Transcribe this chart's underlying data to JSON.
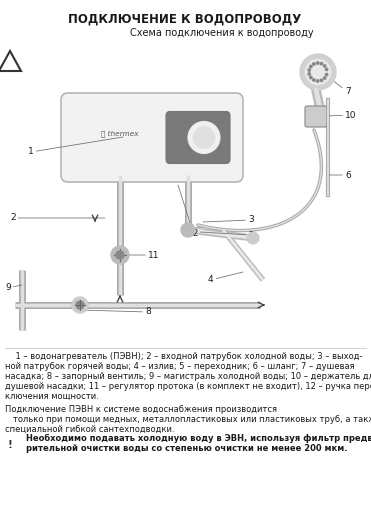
{
  "title": "ПОДКЛЮЧЕНИЕ К ВОДОПРОВОДУ",
  "subtitle": "Схема подключения к водопроводу",
  "bg_color": "#ffffff",
  "title_fontsize": 8.5,
  "subtitle_fontsize": 7,
  "legend_line1": "    1 – водонагреватель (ПЭВН); 2 – входной патрубок холодной воды; 3 – выход-",
  "legend_line2": "ной патрубок горячей воды; 4 – излив; 5 – переходник; 6 – шланг; 7 – душевая",
  "legend_line3": "насадка; 8 – запорный вентиль; 9 – магистраль холодной воды; 10 – держатель для",
  "legend_line4": "душевой насадки; 11 – регулятор протока (в комплект не входит), 12 – ручка пере-",
  "legend_line5": "ключения мощности.",
  "conn_line1": "Подключение ПЭВН к системе водоснабжения производится",
  "conn_line2": "   только при помощи медных, металлопластиковых или пластиковых труб, а также",
  "conn_line3": "специальной гибкой сантехподводки.",
  "warn_text": "Необходимо подавать холодную воду в ЭВН, используя фильтр предва-",
  "warn_text2": "рительной очистки воды со степенью очистки не менее 200 мкм.",
  "font_color": "#1a1a1a"
}
